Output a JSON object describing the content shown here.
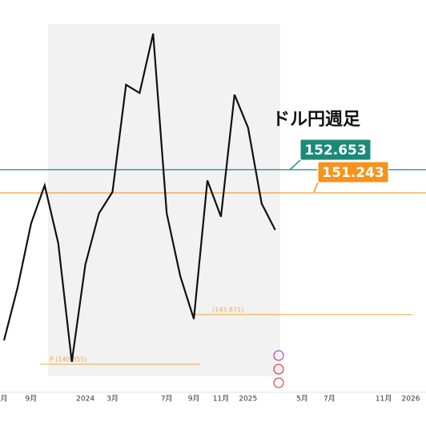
{
  "chart_data": {
    "type": "line",
    "title": "ドル円週足",
    "categories": [
      "月",
      null,
      "9月",
      null,
      null,
      null,
      "2024",
      null,
      "3月",
      null,
      null,
      null,
      "7月",
      null,
      "9月",
      null,
      "11月",
      null,
      "2025",
      null,
      null,
      null,
      "5月",
      null,
      "7月",
      null,
      null,
      null,
      "11月",
      null,
      "2026"
    ],
    "series": [
      {
        "color": "#111111",
        "values": [
          142.3,
          145.5,
          149.4,
          151.7,
          148.2,
          141.0,
          146.9,
          150.0,
          151.3,
          157.8,
          157.3,
          160.9,
          150.0,
          146.2,
          143.6,
          152.0,
          149.8,
          157.2,
          155.2,
          150.6,
          149.0,
          null,
          null,
          null,
          null,
          null,
          null,
          null,
          null,
          null,
          null
        ]
      }
    ],
    "ylim": [
      139.15,
      162.94
    ],
    "levels": [
      {
        "value": 152.653,
        "label": "152.653",
        "color": "#1a8a78"
      },
      {
        "value": 151.243,
        "label": "151.243",
        "color": "#f7931a"
      },
      {
        "value": 143.871,
        "label": "(143.871)",
        "color": "#f2a93b"
      },
      {
        "value": 140.855,
        "label": "P (140.855)",
        "color": "#f2a93b"
      }
    ]
  }
}
